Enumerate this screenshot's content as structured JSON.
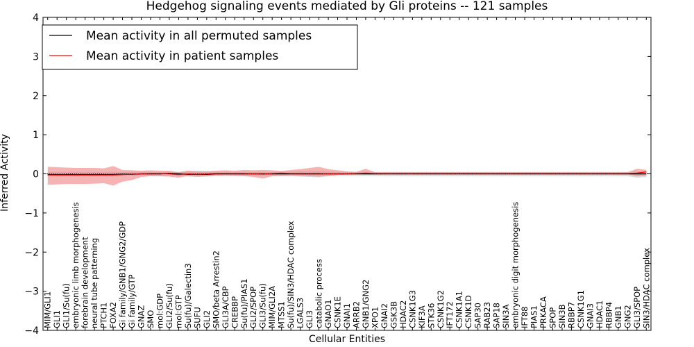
{
  "chart_data": {
    "type": "line",
    "title": "Hedgehog signaling events mediated by Gli proteins -- 121 samples",
    "xlabel": "Cellular Entities",
    "ylabel": "Inferred Activity",
    "ylim": [
      -4,
      4
    ],
    "yticks": [
      4,
      3,
      2,
      1,
      0,
      -1,
      -2,
      -3,
      -4
    ],
    "ytick_labels": [
      "4",
      "3",
      "2",
      "1",
      "0",
      "−1",
      "−2",
      "−3",
      "−4"
    ],
    "legend_position": "top-left",
    "categories": [
      "MIM/GLI1",
      "GLI1",
      "GLI1/Su(fu)",
      "embryonic limb morphogenesis",
      "forebrain development",
      "neural tube patterning",
      "PTCH1",
      "FOXA2",
      "Gi family/GNB1/GNG2/GDP",
      "Gi family/GTP",
      "GNAZ",
      "SMO",
      "mol:GDP",
      "GLI2/Su(fu)",
      "mol:GTP",
      "Su(fu)/Galectin3",
      "SUFU",
      "GLI2",
      "SMO/beta Arrestin2",
      "GLI3A/CBP",
      "CREBBP",
      "Su(fu)/PIAS1",
      "GLI2/SPOP",
      "GLI3/Su(fu)",
      "MIM/GLI2A",
      "MTSS1",
      "Su(fu)/SIN3/HDAC complex",
      "LGALS3",
      "GLI3",
      "catabolic process",
      "GNAO1",
      "CSNK1E",
      "GNAI1",
      "ARRB2",
      "GNB1/GNG2",
      "XPO1",
      "GNAI2",
      "GSK3B",
      "HDAC2",
      "CSNK1G3",
      "KIF3A",
      "STK36",
      "CSNK1G2",
      "IFT172",
      "CSNK1A1",
      "CSNK1D",
      "SAP30",
      "RAB23",
      "SAP18",
      "SIN3A",
      "embryonic digit morphogenesis",
      "IFT88",
      "PIAS1",
      "PRKACA",
      "SPOP",
      "SIN3B",
      "RBBP7",
      "CSNK1G1",
      "GNAI3",
      "HDAC1",
      "RBBP4",
      "GNB1",
      "GNG2",
      "GLI3/SPOP",
      "SIN3/HDAC complex"
    ],
    "series": [
      {
        "name": "Mean activity in all permuted samples",
        "color": "#000000",
        "values": [
          -0.02,
          -0.02,
          -0.02,
          -0.02,
          -0.02,
          -0.02,
          -0.02,
          -0.02,
          -0.01,
          -0.01,
          0.0,
          0.0,
          0.0,
          0.01,
          0.0,
          -0.01,
          -0.01,
          -0.01,
          0.0,
          0.0,
          0.0,
          0.0,
          0.0,
          0.0,
          0.0,
          0.0,
          0.0,
          0.0,
          0.0,
          0.0,
          0.0,
          0.0,
          0.0,
          0.0,
          0.0,
          0.0,
          0.0,
          0.0,
          0.0,
          0.0,
          0.0,
          0.0,
          0.0,
          0.0,
          0.0,
          0.0,
          0.0,
          0.0,
          0.0,
          0.0,
          0.0,
          0.0,
          0.0,
          0.0,
          0.0,
          0.0,
          0.0,
          0.0,
          0.0,
          0.0,
          0.0,
          0.0,
          0.0,
          0.0,
          0.0
        ],
        "band_low": [
          -0.06,
          -0.06,
          -0.06,
          -0.06,
          -0.06,
          -0.06,
          -0.06,
          -0.06,
          -0.05,
          -0.05,
          -0.05,
          -0.05,
          -0.05,
          -0.05,
          -0.05,
          -0.07,
          -0.08,
          -0.07,
          -0.05,
          -0.05,
          -0.05,
          -0.05,
          -0.05,
          -0.05,
          -0.05,
          -0.06,
          -0.06,
          -0.07,
          -0.08,
          -0.09,
          -0.06,
          -0.05,
          -0.05,
          -0.05,
          -0.05,
          -0.05,
          -0.06,
          -0.06,
          -0.06,
          -0.06,
          -0.06,
          -0.06,
          -0.06,
          -0.06,
          -0.06,
          -0.06,
          -0.06,
          -0.06,
          -0.06,
          -0.06,
          -0.06,
          -0.06,
          -0.06,
          -0.06,
          -0.06,
          -0.06,
          -0.06,
          -0.06,
          -0.06,
          -0.06,
          -0.06,
          -0.06,
          -0.06,
          -0.1,
          -0.08
        ],
        "band_high": [
          0.05,
          0.05,
          0.05,
          0.05,
          0.05,
          0.05,
          0.05,
          0.05,
          0.05,
          0.05,
          0.05,
          0.05,
          0.05,
          0.05,
          0.05,
          0.07,
          0.08,
          0.07,
          0.05,
          0.05,
          0.05,
          0.05,
          0.05,
          0.05,
          0.05,
          0.06,
          0.06,
          0.07,
          0.07,
          0.08,
          0.06,
          0.05,
          0.05,
          0.05,
          0.05,
          0.05,
          0.05,
          0.05,
          0.05,
          0.05,
          0.05,
          0.05,
          0.05,
          0.05,
          0.05,
          0.05,
          0.05,
          0.05,
          0.05,
          0.05,
          0.05,
          0.05,
          0.05,
          0.05,
          0.05,
          0.05,
          0.05,
          0.05,
          0.05,
          0.05,
          0.05,
          0.05,
          0.05,
          0.06,
          0.08
        ]
      },
      {
        "name": "Mean activity in patient samples",
        "color": "#ff0000",
        "values": [
          -0.03,
          -0.03,
          -0.03,
          -0.03,
          -0.03,
          -0.03,
          -0.03,
          -0.03,
          -0.02,
          -0.01,
          0.0,
          0.01,
          0.01,
          0.0,
          -0.02,
          0.0,
          -0.01,
          0.0,
          0.01,
          0.01,
          0.01,
          0.01,
          0.0,
          -0.01,
          0.01,
          0.02,
          0.01,
          0.01,
          0.01,
          0.01,
          0.0,
          0.0,
          0.0,
          0.01,
          0.02,
          0.01,
          0.01,
          0.01,
          0.01,
          0.01,
          0.01,
          0.01,
          0.01,
          0.01,
          0.01,
          0.01,
          0.01,
          0.01,
          0.01,
          0.01,
          0.01,
          0.01,
          0.01,
          0.01,
          0.01,
          0.01,
          0.01,
          0.01,
          0.01,
          0.01,
          0.01,
          0.01,
          0.01,
          0.02,
          0.05
        ],
        "band_low": [
          -0.28,
          -0.27,
          -0.26,
          -0.26,
          -0.26,
          -0.25,
          -0.24,
          -0.3,
          -0.2,
          -0.16,
          -0.08,
          -0.06,
          -0.06,
          -0.07,
          -0.1,
          -0.05,
          -0.07,
          -0.06,
          -0.05,
          -0.04,
          -0.05,
          -0.06,
          -0.08,
          -0.12,
          -0.06,
          -0.05,
          -0.04,
          -0.05,
          -0.06,
          -0.07,
          -0.05,
          -0.03,
          -0.02,
          -0.01,
          -0.02,
          -0.02,
          -0.01,
          -0.01,
          -0.01,
          -0.01,
          -0.01,
          -0.01,
          -0.01,
          -0.01,
          -0.01,
          -0.01,
          -0.01,
          -0.01,
          -0.01,
          -0.01,
          -0.01,
          -0.01,
          -0.01,
          -0.01,
          -0.01,
          -0.01,
          -0.01,
          -0.01,
          -0.01,
          -0.01,
          -0.01,
          -0.01,
          -0.01,
          -0.06,
          -0.04
        ],
        "band_high": [
          0.18,
          0.17,
          0.16,
          0.15,
          0.15,
          0.15,
          0.14,
          0.2,
          0.1,
          0.09,
          0.08,
          0.09,
          0.08,
          0.08,
          0.04,
          0.08,
          0.06,
          0.06,
          0.08,
          0.09,
          0.08,
          0.1,
          0.09,
          0.1,
          0.09,
          0.07,
          0.1,
          0.12,
          0.15,
          0.18,
          0.12,
          0.09,
          0.06,
          0.05,
          0.13,
          0.04,
          0.04,
          0.04,
          0.04,
          0.04,
          0.04,
          0.04,
          0.04,
          0.04,
          0.04,
          0.04,
          0.04,
          0.04,
          0.04,
          0.04,
          0.04,
          0.04,
          0.04,
          0.04,
          0.04,
          0.04,
          0.04,
          0.04,
          0.04,
          0.04,
          0.04,
          0.04,
          0.04,
          0.13,
          0.1
        ]
      }
    ]
  }
}
